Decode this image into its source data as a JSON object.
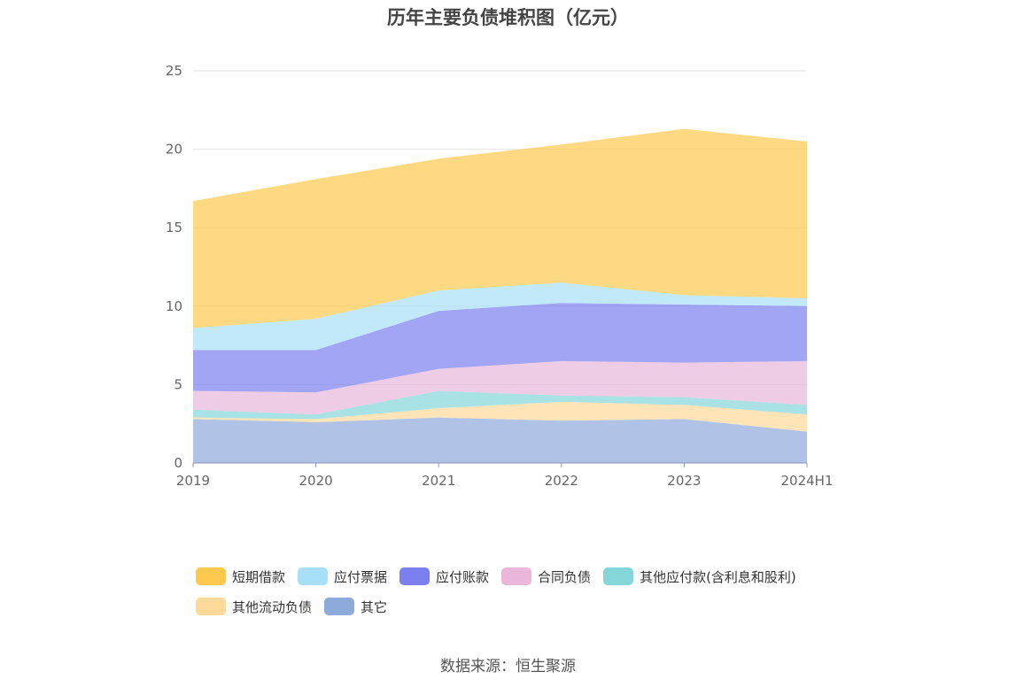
{
  "title": "历年主要负债堆积图（亿元）",
  "source": "数据来源：恒生聚源",
  "chart_data": {
    "type": "area",
    "stacked": true,
    "x": [
      "2019",
      "2020",
      "2021",
      "2022",
      "2023",
      "2024H1"
    ],
    "ylim": [
      0,
      25
    ],
    "yticks": [
      "0",
      "5",
      "10",
      "15",
      "20",
      "25"
    ],
    "grid": true,
    "legend_position": "bottom",
    "series": [
      {
        "name": "其它",
        "color": "#8eaadb",
        "values": [
          2.8,
          2.6,
          2.9,
          2.7,
          2.8,
          2.0
        ]
      },
      {
        "name": "其他流动负债",
        "color": "#ffd999",
        "values": [
          0.1,
          0.2,
          0.6,
          1.2,
          0.9,
          1.1
        ]
      },
      {
        "name": "其他应付款(含利息和股利)",
        "color": "#85d6d8",
        "values": [
          0.5,
          0.3,
          1.1,
          0.4,
          0.5,
          0.6
        ]
      },
      {
        "name": "合同负债",
        "color": "#e8b7da",
        "values": [
          1.2,
          1.4,
          1.4,
          2.2,
          2.2,
          2.8
        ]
      },
      {
        "name": "应付账款",
        "color": "#7b7ff0",
        "values": [
          2.6,
          2.7,
          3.7,
          3.7,
          3.7,
          3.5
        ]
      },
      {
        "name": "应付票据",
        "color": "#a8dff8",
        "values": [
          1.4,
          2.0,
          1.3,
          1.3,
          0.6,
          0.5
        ]
      },
      {
        "name": "短期借款",
        "color": "#ffc94d",
        "values": [
          8.1,
          8.9,
          8.4,
          8.8,
          10.6,
          10.0
        ]
      }
    ],
    "legend_order": [
      "短期借款",
      "应付票据",
      "应付账款",
      "合同负债",
      "其他应付款(含利息和股利)",
      "其他流动负债",
      "其它"
    ]
  }
}
